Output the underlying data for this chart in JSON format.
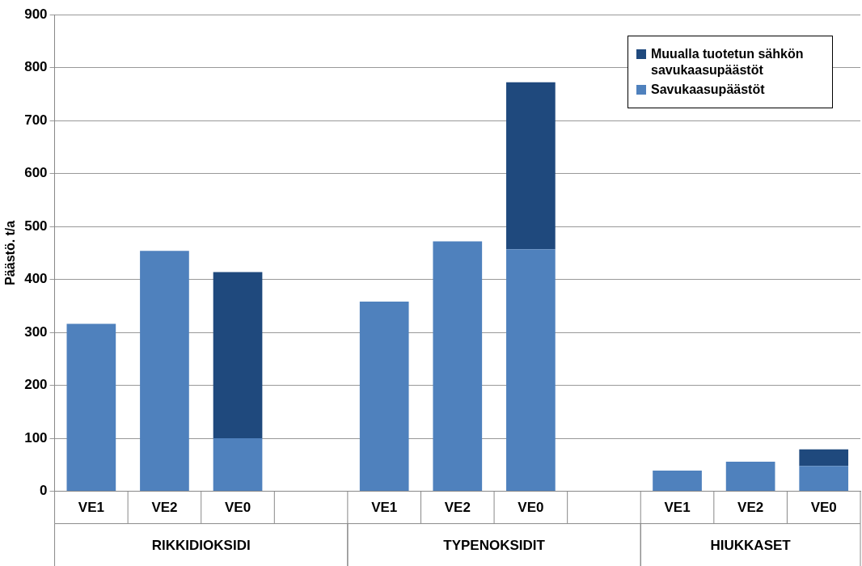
{
  "chart_data": {
    "type": "bar",
    "ylabel": "Päästö. t/a",
    "categories": [
      "VE1",
      "VE2",
      "VE0",
      null,
      "VE1",
      "VE2",
      "VE0",
      null,
      "VE1",
      "VE2",
      "VE0"
    ],
    "series": [
      {
        "name": "Savukaasupäästöt",
        "color": "#4f81bd",
        "values": [
          316,
          454,
          100,
          null,
          358,
          472,
          457,
          null,
          39,
          56,
          48
        ]
      },
      {
        "name": "Muualla tuotetun sähkön savukaasupäästöt",
        "color": "#1f497d",
        "values": [
          null,
          null,
          314,
          null,
          null,
          null,
          315,
          null,
          null,
          null,
          31
        ]
      }
    ],
    "stacked": true,
    "ylim": [
      0,
      900
    ],
    "yticks": [
      0,
      100,
      200,
      300,
      400,
      500,
      600,
      700,
      800,
      900
    ],
    "grid": "y",
    "legend": "top right",
    "annotations": [
      "RIKKIDIOKSIDI",
      "TYPENOKSIDIT",
      "HIUKKASET"
    ]
  }
}
